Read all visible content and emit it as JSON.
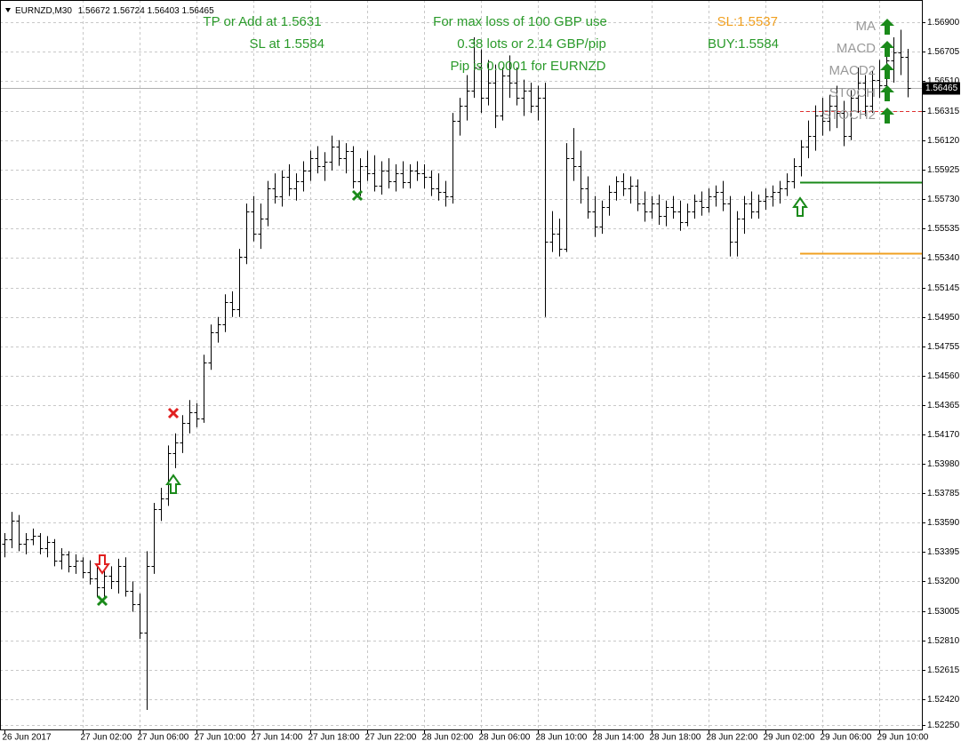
{
  "chart_data": {
    "type": "ohlc",
    "symbol": "EURNZD,M30",
    "ylim": [
      1.52215,
      1.57047
    ],
    "yticks": [
      {
        "value": 1.569,
        "label": "1.56900"
      },
      {
        "value": 1.56705,
        "label": "1.56705"
      },
      {
        "value": 1.5651,
        "label": "1.56510"
      },
      {
        "value": 1.56315,
        "label": "1.56315"
      },
      {
        "value": 1.5612,
        "label": "1.56120"
      },
      {
        "value": 1.55925,
        "label": "1.55925"
      },
      {
        "value": 1.5573,
        "label": "1.55730"
      },
      {
        "value": 1.55535,
        "label": "1.55535"
      },
      {
        "value": 1.5534,
        "label": "1.55340"
      },
      {
        "value": 1.55145,
        "label": "1.55145"
      },
      {
        "value": 1.5495,
        "label": "1.54950"
      },
      {
        "value": 1.54755,
        "label": "1.54755"
      },
      {
        "value": 1.5456,
        "label": "1.54560"
      },
      {
        "value": 1.54365,
        "label": "1.54365"
      },
      {
        "value": 1.5417,
        "label": "1.54170"
      },
      {
        "value": 1.5398,
        "label": "1.53980"
      },
      {
        "value": 1.53785,
        "label": "1.53785"
      },
      {
        "value": 1.5359,
        "label": "1.53590"
      },
      {
        "value": 1.53395,
        "label": "1.53395"
      },
      {
        "value": 1.532,
        "label": "1.53200"
      },
      {
        "value": 1.53005,
        "label": "1.53005"
      },
      {
        "value": 1.5281,
        "label": "1.52810"
      },
      {
        "value": 1.52615,
        "label": "1.52615"
      },
      {
        "value": 1.5242,
        "label": "1.52420"
      },
      {
        "value": 1.5225,
        "label": "1.52250"
      }
    ],
    "grid": true,
    "categories": [
      "26 Jun 2017",
      null,
      null,
      null,
      null,
      null,
      null,
      null,
      null,
      null,
      null,
      "27 Jun 02:00",
      null,
      null,
      null,
      null,
      null,
      null,
      null,
      "27 Jun 06:00",
      null,
      null,
      null,
      null,
      null,
      null,
      null,
      "27 Jun 10:00",
      null,
      null,
      null,
      null,
      null,
      null,
      null,
      "27 Jun 14:00",
      null,
      null,
      null,
      null,
      null,
      null,
      null,
      "27 Jun 18:00",
      null,
      null,
      null,
      null,
      null,
      null,
      null,
      "27 Jun 22:00",
      null,
      null,
      null,
      null,
      null,
      null,
      null,
      "28 Jun 02:00",
      null,
      null,
      null,
      null,
      null,
      null,
      null,
      "28 Jun 06:00",
      null,
      null,
      null,
      null,
      null,
      null,
      null,
      "28 Jun 10:00",
      null,
      null,
      null,
      null,
      null,
      null,
      null,
      "28 Jun 14:00",
      null,
      null,
      null,
      null,
      null,
      null,
      null,
      "28 Jun 18:00",
      null,
      null,
      null,
      null,
      null,
      null,
      null,
      "28 Jun 22:00",
      null,
      null,
      null,
      null,
      null,
      null,
      null,
      "29 Jun 02:00",
      null,
      null,
      null,
      null,
      null,
      null,
      null,
      "29 Jun 06:00",
      null,
      null,
      null,
      null,
      null,
      null,
      null,
      "29 Jun 10:00",
      null,
      null,
      null,
      null
    ],
    "ohlc": [
      [
        1.5345,
        1.5352,
        1.5336,
        1.5348
      ],
      [
        1.5348,
        1.5366,
        1.5342,
        1.536
      ],
      [
        1.536,
        1.5364,
        1.534,
        1.5345
      ],
      [
        1.5345,
        1.5352,
        1.5338,
        1.5348
      ],
      [
        1.5348,
        1.5355,
        1.5344,
        1.535
      ],
      [
        1.535,
        1.5352,
        1.5338,
        1.5342
      ],
      [
        1.5342,
        1.535,
        1.5336,
        1.5346
      ],
      [
        1.5346,
        1.5348,
        1.533,
        1.5334
      ],
      [
        1.5334,
        1.5342,
        1.5328,
        1.5338
      ],
      [
        1.5338,
        1.534,
        1.5326,
        1.533
      ],
      [
        1.533,
        1.5338,
        1.5325,
        1.5334
      ],
      [
        1.5334,
        1.5336,
        1.5322,
        1.5326
      ],
      [
        1.5326,
        1.5334,
        1.5318,
        1.5322
      ],
      [
        1.5322,
        1.533,
        1.531,
        1.5316
      ],
      [
        1.5316,
        1.5328,
        1.531,
        1.5324
      ],
      [
        1.5324,
        1.533,
        1.5315,
        1.532
      ],
      [
        1.532,
        1.5335,
        1.5312,
        1.533
      ],
      [
        1.533,
        1.5336,
        1.531,
        1.5314
      ],
      [
        1.5314,
        1.532,
        1.53,
        1.5305
      ],
      [
        1.5305,
        1.5312,
        1.5282,
        1.5286
      ],
      [
        1.5286,
        1.534,
        1.5235,
        1.533
      ],
      [
        1.533,
        1.5372,
        1.5325,
        1.5368
      ],
      [
        1.5368,
        1.5382,
        1.536,
        1.5375
      ],
      [
        1.5375,
        1.541,
        1.537,
        1.5405
      ],
      [
        1.5405,
        1.5418,
        1.5395,
        1.5412
      ],
      [
        1.5412,
        1.543,
        1.5405,
        1.5425
      ],
      [
        1.5425,
        1.544,
        1.5418,
        1.5432
      ],
      [
        1.5432,
        1.5438,
        1.5422,
        1.5428
      ],
      [
        1.5428,
        1.547,
        1.5425,
        1.5465
      ],
      [
        1.5465,
        1.549,
        1.546,
        1.5485
      ],
      [
        1.5485,
        1.5495,
        1.5478,
        1.549
      ],
      [
        1.549,
        1.551,
        1.5485,
        1.5505
      ],
      [
        1.5505,
        1.5512,
        1.5495,
        1.55
      ],
      [
        1.55,
        1.554,
        1.5495,
        1.5535
      ],
      [
        1.5535,
        1.557,
        1.553,
        1.5565
      ],
      [
        1.5565,
        1.5575,
        1.5545,
        1.555
      ],
      [
        1.555,
        1.557,
        1.554,
        1.556
      ],
      [
        1.556,
        1.5585,
        1.5555,
        1.558
      ],
      [
        1.558,
        1.559,
        1.557,
        1.5575
      ],
      [
        1.5575,
        1.5592,
        1.5568,
        1.5588
      ],
      [
        1.5588,
        1.5596,
        1.5575,
        1.558
      ],
      [
        1.558,
        1.559,
        1.5572,
        1.5585
      ],
      [
        1.5585,
        1.5598,
        1.5578,
        1.5592
      ],
      [
        1.5592,
        1.5605,
        1.5585,
        1.56
      ],
      [
        1.56,
        1.5608,
        1.559,
        1.5595
      ],
      [
        1.5595,
        1.5604,
        1.5585,
        1.5598
      ],
      [
        1.5598,
        1.5615,
        1.5592,
        1.5608
      ],
      [
        1.5608,
        1.5612,
        1.5595,
        1.56
      ],
      [
        1.56,
        1.561,
        1.559,
        1.5605
      ],
      [
        1.5605,
        1.5608,
        1.558,
        1.5585
      ],
      [
        1.5585,
        1.56,
        1.5575,
        1.5595
      ],
      [
        1.5595,
        1.5605,
        1.5585,
        1.559
      ],
      [
        1.559,
        1.5602,
        1.5578,
        1.5582
      ],
      [
        1.5582,
        1.5598,
        1.5576,
        1.5592
      ],
      [
        1.5592,
        1.56,
        1.558,
        1.5585
      ],
      [
        1.5585,
        1.5596,
        1.5578,
        1.559
      ],
      [
        1.559,
        1.5598,
        1.558,
        1.5584
      ],
      [
        1.5584,
        1.5596,
        1.558,
        1.5592
      ],
      [
        1.5592,
        1.5598,
        1.5585,
        1.559
      ],
      [
        1.559,
        1.5596,
        1.558,
        1.5588
      ],
      [
        1.5588,
        1.5592,
        1.5575,
        1.558
      ],
      [
        1.558,
        1.559,
        1.5572,
        1.5578
      ],
      [
        1.5578,
        1.5585,
        1.5568,
        1.5575
      ],
      [
        1.5575,
        1.563,
        1.557,
        1.5625
      ],
      [
        1.5625,
        1.564,
        1.5615,
        1.5635
      ],
      [
        1.5635,
        1.5655,
        1.5625,
        1.5645
      ],
      [
        1.5645,
        1.568,
        1.564,
        1.566
      ],
      [
        1.566,
        1.5672,
        1.563,
        1.564
      ],
      [
        1.564,
        1.5665,
        1.5635,
        1.565
      ],
      [
        1.565,
        1.5662,
        1.562,
        1.5628
      ],
      [
        1.5628,
        1.566,
        1.5625,
        1.5655
      ],
      [
        1.5655,
        1.5668,
        1.564,
        1.565
      ],
      [
        1.565,
        1.566,
        1.5635,
        1.564
      ],
      [
        1.564,
        1.5652,
        1.5628,
        1.5645
      ],
      [
        1.5645,
        1.565,
        1.563,
        1.5635
      ],
      [
        1.5635,
        1.5648,
        1.5625,
        1.564
      ],
      [
        1.564,
        1.565,
        1.5495,
        1.5545
      ],
      [
        1.5545,
        1.5565,
        1.5538,
        1.555
      ],
      [
        1.555,
        1.556,
        1.5535,
        1.554
      ],
      [
        1.554,
        1.561,
        1.5538,
        1.56
      ],
      [
        1.56,
        1.562,
        1.5585,
        1.5595
      ],
      [
        1.5595,
        1.5605,
        1.557,
        1.558
      ],
      [
        1.558,
        1.5588,
        1.556,
        1.5565
      ],
      [
        1.5565,
        1.5575,
        1.5548,
        1.5555
      ],
      [
        1.5555,
        1.5572,
        1.555,
        1.5568
      ],
      [
        1.5568,
        1.5582,
        1.5562,
        1.5578
      ],
      [
        1.5578,
        1.5588,
        1.5572,
        1.5585
      ],
      [
        1.5585,
        1.559,
        1.5575,
        1.558
      ],
      [
        1.558,
        1.5588,
        1.557,
        1.5582
      ],
      [
        1.5582,
        1.5586,
        1.5565,
        1.557
      ],
      [
        1.557,
        1.5578,
        1.5558,
        1.5565
      ],
      [
        1.5565,
        1.5575,
        1.556,
        1.557
      ],
      [
        1.557,
        1.5576,
        1.5556,
        1.5562
      ],
      [
        1.5562,
        1.5572,
        1.5555,
        1.5568
      ],
      [
        1.5568,
        1.5575,
        1.556,
        1.5565
      ],
      [
        1.5565,
        1.5572,
        1.5552,
        1.5558
      ],
      [
        1.5558,
        1.557,
        1.5555,
        1.5565
      ],
      [
        1.5565,
        1.5576,
        1.556,
        1.5572
      ],
      [
        1.5572,
        1.5578,
        1.5562,
        1.5568
      ],
      [
        1.5568,
        1.558,
        1.5564,
        1.5575
      ],
      [
        1.5575,
        1.5582,
        1.5568,
        1.5578
      ],
      [
        1.5578,
        1.5585,
        1.5565,
        1.557
      ],
      [
        1.557,
        1.5575,
        1.5535,
        1.5545
      ],
      [
        1.5545,
        1.5565,
        1.5535,
        1.556
      ],
      [
        1.556,
        1.5575,
        1.555,
        1.557
      ],
      [
        1.557,
        1.5578,
        1.556,
        1.5565
      ],
      [
        1.5565,
        1.5576,
        1.556,
        1.5572
      ],
      [
        1.5572,
        1.558,
        1.5566,
        1.5575
      ],
      [
        1.5575,
        1.5582,
        1.5568,
        1.5578
      ],
      [
        1.5578,
        1.5585,
        1.557,
        1.558
      ],
      [
        1.558,
        1.559,
        1.5575,
        1.5585
      ],
      [
        1.5585,
        1.56,
        1.558,
        1.5595
      ],
      [
        1.5595,
        1.5612,
        1.5588,
        1.5608
      ],
      [
        1.5608,
        1.5625,
        1.56,
        1.5615
      ],
      [
        1.5615,
        1.5635,
        1.5605,
        1.5628
      ],
      [
        1.5628,
        1.564,
        1.5615,
        1.5625
      ],
      [
        1.5625,
        1.5642,
        1.5618,
        1.5635
      ],
      [
        1.5635,
        1.5648,
        1.562,
        1.563
      ],
      [
        1.563,
        1.5638,
        1.5608,
        1.5615
      ],
      [
        1.5615,
        1.5645,
        1.5612,
        1.564
      ],
      [
        1.564,
        1.566,
        1.563,
        1.565
      ],
      [
        1.565,
        1.5655,
        1.5628,
        1.5635
      ],
      [
        1.5635,
        1.5658,
        1.563,
        1.5652
      ],
      [
        1.5652,
        1.5665,
        1.564,
        1.5648
      ],
      [
        1.5648,
        1.5672,
        1.5642,
        1.5665
      ],
      [
        1.5665,
        1.568,
        1.565,
        1.567
      ],
      [
        1.567,
        1.5685,
        1.5655,
        1.5667
      ],
      [
        1.56672,
        1.56724,
        1.56403,
        1.56465
      ]
    ],
    "levels": [
      {
        "value": 1.5631,
        "color": "#e03030",
        "dash": true
      },
      {
        "value": 1.5584,
        "color": "#1a8a1a",
        "dash": false
      },
      {
        "value": 1.5537,
        "color": "#f0a020",
        "dash": false
      }
    ],
    "annotations": {
      "tp": "TP or Add at 1.5631",
      "sl": "SL at 1.5584",
      "risk": "For max loss of 100 GBP use",
      "lots": "0.38 lots or 2.14 GBP/pip",
      "pip": "Pip is 0.0001 for EURNZD",
      "sl_level": "SL:1.5537",
      "buy_level": "BUY:1.5584"
    },
    "signals": [
      "MA",
      "MACD",
      "MACD2",
      "STOCH",
      "STOCH2"
    ]
  }
}
